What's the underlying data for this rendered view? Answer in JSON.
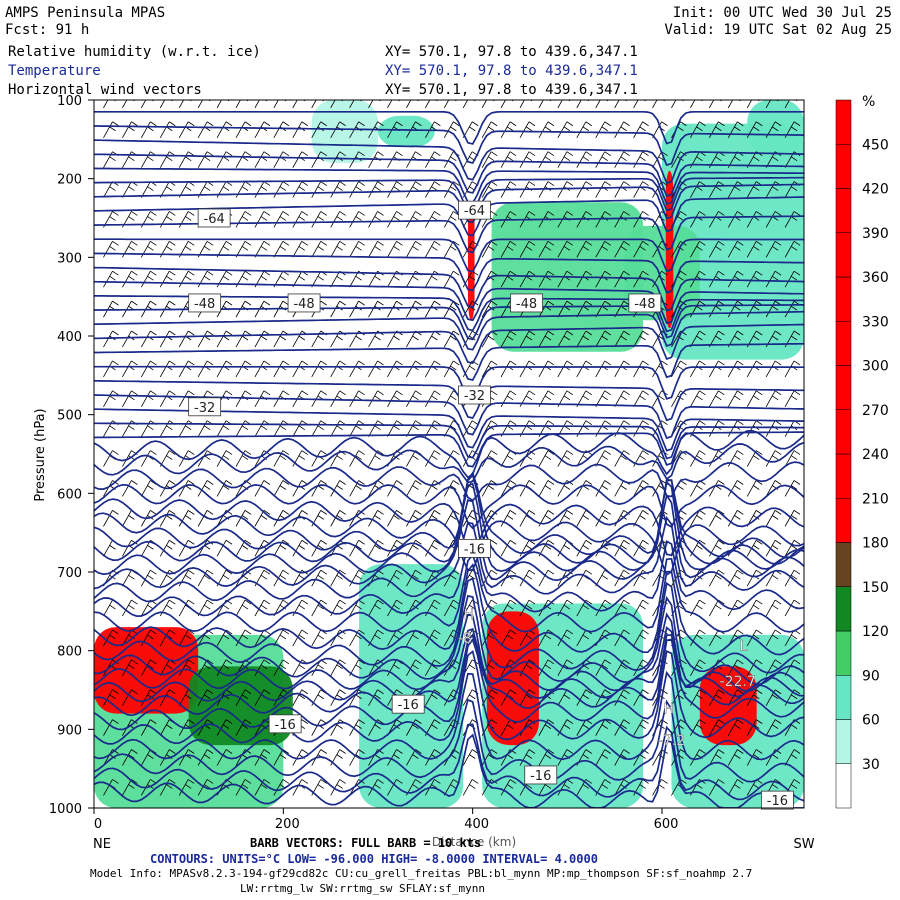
{
  "header": {
    "title": "AMPS Peninsula MPAS",
    "forecast": "Fcst:   91 h",
    "init": "Init: 00 UTC Wed 30 Jul 25",
    "valid": "Valid: 19 UTC Sat 02 Aug 25",
    "fields": [
      {
        "name": "Relative humidity (w.r.t. ice)",
        "xy": "XY= 570.1, 97.8 to 439.6,347.1"
      },
      {
        "name": "Temperature",
        "xy": "XY= 570.1, 97.8 to 439.6,347.1"
      },
      {
        "name": "Horizontal wind vectors",
        "xy": "XY= 570.1, 97.8 to 439.6,347.1"
      }
    ]
  },
  "colors": {
    "contour": "#1a2a8a",
    "rh_scale": [
      "#ffffff",
      "#b4f5e6",
      "#66e6c4",
      "#55dd99",
      "#44cc66",
      "#22aa33",
      "#118822",
      "#006600",
      "#664422",
      "#cc2222",
      "#ff0000"
    ]
  },
  "chart_data": {
    "type": "heatmap",
    "title": "",
    "xlabel": "Distance (km)",
    "ylabel": "Pressure (hPa)",
    "xlim": [
      0,
      750
    ],
    "ylim": [
      1000,
      100
    ],
    "x_ticks": [
      0,
      200,
      400,
      600
    ],
    "y_ticks": [
      100,
      200,
      300,
      400,
      500,
      600,
      700,
      800,
      900,
      1000
    ],
    "x_end_labels": {
      "left": "NE",
      "right": "SW"
    },
    "colorbar": {
      "unit": "%",
      "ticks": [
        30,
        60,
        90,
        120,
        150,
        180,
        210,
        240,
        270,
        300,
        330,
        360,
        390,
        420,
        450
      ]
    },
    "rh_regions": [
      {
        "level": 3,
        "x": [
          0,
          200
        ],
        "p": [
          780,
          1000
        ]
      },
      {
        "level": 10,
        "x": [
          0,
          110
        ],
        "p": [
          770,
          880
        ]
      },
      {
        "level": 6,
        "x": [
          100,
          210
        ],
        "p": [
          820,
          920
        ]
      },
      {
        "level": 2,
        "x": [
          280,
          390
        ],
        "p": [
          690,
          1000
        ]
      },
      {
        "level": 2,
        "x": [
          410,
          580
        ],
        "p": [
          740,
          1000
        ]
      },
      {
        "level": 10,
        "x": [
          415,
          470
        ],
        "p": [
          750,
          920
        ]
      },
      {
        "level": 2,
        "x": [
          610,
          750
        ],
        "p": [
          780,
          1000
        ]
      },
      {
        "level": 10,
        "x": [
          640,
          700
        ],
        "p": [
          820,
          920
        ]
      },
      {
        "level": 3,
        "x": [
          420,
          580
        ],
        "p": [
          230,
          420
        ]
      },
      {
        "level": 2,
        "x": [
          600,
          750
        ],
        "p": [
          130,
          430
        ]
      },
      {
        "level": 3,
        "x": [
          560,
          640
        ],
        "p": [
          260,
          380
        ]
      },
      {
        "level": 1,
        "x": [
          230,
          300
        ],
        "p": [
          100,
          180
        ]
      },
      {
        "level": 2,
        "x": [
          300,
          360
        ],
        "p": [
          120,
          160
        ]
      },
      {
        "level": 10,
        "x": [
          395,
          402
        ],
        "p": [
          230,
          380
        ]
      },
      {
        "level": 10,
        "x": [
          604,
          612
        ],
        "p": [
          190,
          390
        ]
      },
      {
        "level": 2,
        "x": [
          690,
          750
        ],
        "p": [
          100,
          170
        ]
      }
    ],
    "temperature_contours": {
      "units": "°C",
      "low": -96.0,
      "high": -8.0,
      "interval": 4.0,
      "labels": [
        {
          "text": "-64",
          "x": 110,
          "p": 250
        },
        {
          "text": "-64",
          "x": 385,
          "p": 240
        },
        {
          "text": "-48",
          "x": 100,
          "p": 358
        },
        {
          "text": "-48",
          "x": 205,
          "p": 358
        },
        {
          "text": "-48",
          "x": 440,
          "p": 358
        },
        {
          "text": "-48",
          "x": 565,
          "p": 358
        },
        {
          "text": "-32",
          "x": 100,
          "p": 490
        },
        {
          "text": "-32",
          "x": 385,
          "p": 475
        },
        {
          "text": "-16",
          "x": 385,
          "p": 670
        },
        {
          "text": "-16",
          "x": 185,
          "p": 893
        },
        {
          "text": "-16",
          "x": 315,
          "p": 868
        },
        {
          "text": "-16",
          "x": 455,
          "p": 958
        },
        {
          "text": "-16",
          "x": 705,
          "p": 990
        }
      ],
      "extrema": [
        {
          "text": "H",
          "x": 396,
          "p": 760
        },
        {
          "text": "-8",
          "x": 392,
          "p": 790
        },
        {
          "text": "H",
          "x": 607,
          "p": 880
        },
        {
          "text": "-7.2",
          "x": 610,
          "p": 920
        },
        {
          "text": "L",
          "x": 686,
          "p": 800
        },
        {
          "text": "-22.7",
          "x": 680,
          "p": 845
        }
      ]
    }
  },
  "footer": {
    "barb_line": "BARB VECTORS:  FULL BARB = 10 kts",
    "contours_line": "CONTOURS:  UNITS=°C  LOW= -96.000    HIGH= -8.0000    INTERVAL=   4.0000",
    "model_info": "Model Info: MPASv8.2.3-194-gf29cd82c CU:cu_grell_freitas PBL:bl_mynn MP:mp_thompson SF:sf_noahmp 2.7",
    "model_info2": "LW:rrtmg_lw SW:rrtmg_sw SFLAY:sf_mynn"
  }
}
